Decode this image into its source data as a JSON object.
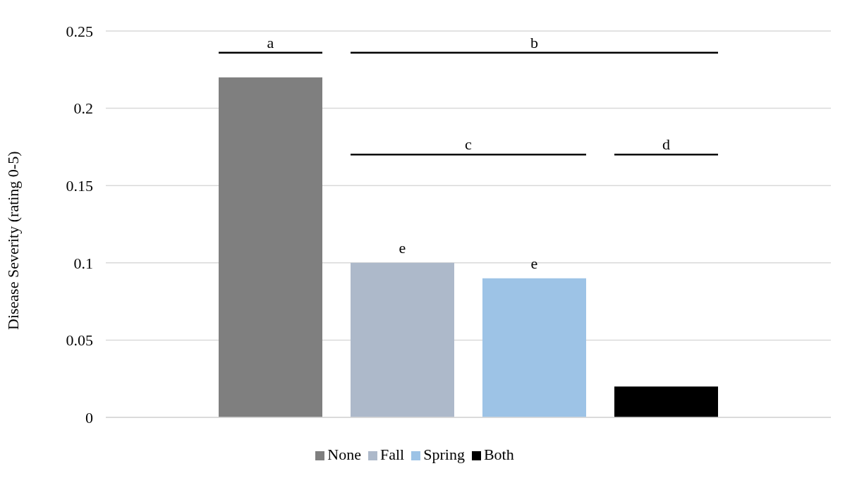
{
  "chart_data": {
    "type": "bar",
    "ylabel": "Disease Severity (rating 0-5)",
    "categories": [
      null
    ],
    "series": [
      {
        "name": "None",
        "color": "#7f7f7f",
        "values": [
          0.22
        ]
      },
      {
        "name": "Fall",
        "color": "#adb9ca",
        "values": [
          0.1
        ]
      },
      {
        "name": "Spring",
        "color": "#9dc3e6",
        "values": [
          0.09
        ]
      },
      {
        "name": "Both",
        "color": "#000000",
        "values": [
          0.02
        ]
      }
    ],
    "ylim": [
      0,
      0.25
    ],
    "yticks": [
      0,
      0.05,
      0.1,
      0.15,
      0.2,
      0.25
    ],
    "grid": "y",
    "legend": "bottom",
    "annotations": [
      "a",
      "b",
      "c",
      "d",
      "e",
      "e"
    ]
  }
}
